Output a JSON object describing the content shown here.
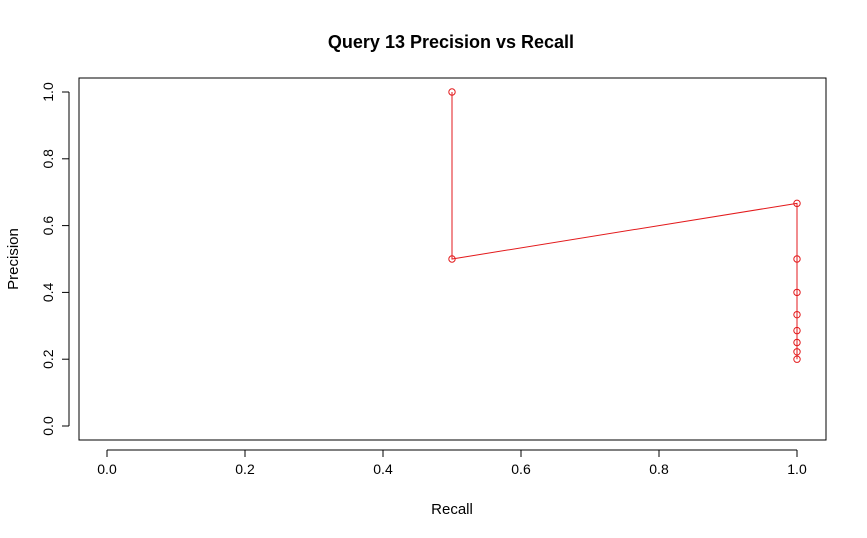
{
  "chart_data": {
    "type": "line",
    "title": "Query 13 Precision vs Recall",
    "xlabel": "Recall",
    "ylabel": "Precision",
    "xlim": [
      0.0,
      1.0
    ],
    "ylim": [
      0.0,
      1.0
    ],
    "x_ticks": [
      "0.0",
      "0.2",
      "0.4",
      "0.6",
      "0.8",
      "1.0"
    ],
    "y_ticks": [
      "0.0",
      "0.2",
      "0.4",
      "0.6",
      "0.8",
      "1.0"
    ],
    "grid": false,
    "legend": "none",
    "series": [
      {
        "color": "#e31a1c",
        "marker": "open-circle",
        "x": [
          0.5,
          0.5,
          1.0,
          1.0,
          1.0,
          1.0,
          1.0,
          1.0,
          1.0,
          1.0
        ],
        "y": [
          1.0,
          0.5,
          0.6667,
          0.5,
          0.4,
          0.3333,
          0.2857,
          0.25,
          0.2222,
          0.2
        ]
      }
    ]
  }
}
